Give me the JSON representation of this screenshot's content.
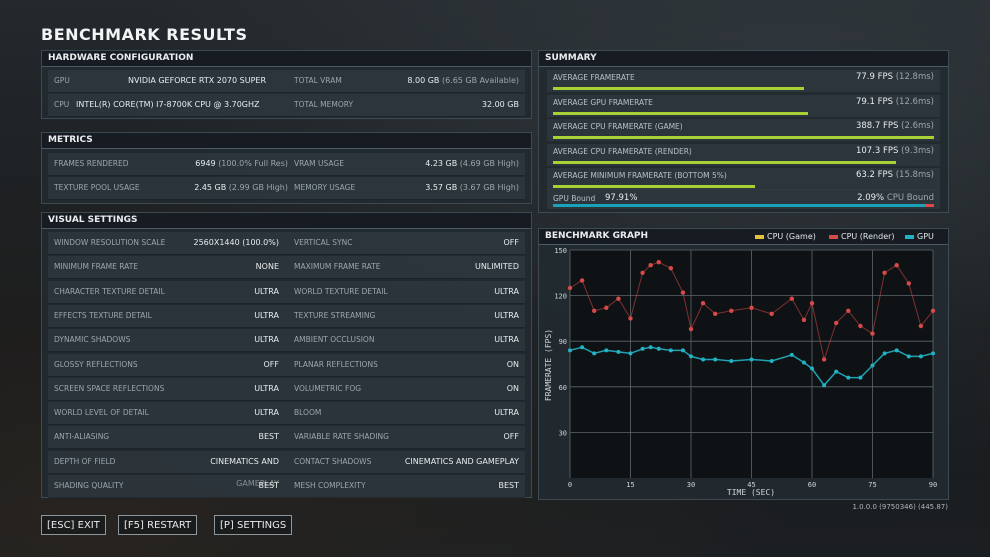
{
  "title": "BENCHMARK RESULTS",
  "hardware": {
    "heading": "HARDWARE CONFIGURATION",
    "gpu_label": "GPU",
    "gpu_value": "NVIDIA GEFORCE RTX 2070 SUPER",
    "vram_label": "TOTAL VRAM",
    "vram_value": "8.00 GB",
    "vram_sub": "(6.65 GB Available)",
    "cpu_label": "CPU",
    "cpu_value": "INTEL(R) CORE(TM) I7-8700K CPU @ 3.70GHZ",
    "mem_label": "TOTAL MEMORY",
    "mem_value": "32.00 GB"
  },
  "metrics": {
    "heading": "METRICS",
    "frames_label": "FRAMES RENDERED",
    "frames_value": "6949",
    "frames_sub": "(100.0% Full Res)",
    "vram_label": "VRAM USAGE",
    "vram_value": "4.23 GB",
    "vram_sub": "(4.69 GB High)",
    "pool_label": "TEXTURE POOL USAGE",
    "pool_value": "2.45 GB",
    "pool_sub": "(2.99 GB High)",
    "mem_label": "MEMORY USAGE",
    "mem_value": "3.57 GB",
    "mem_sub": "(3.67 GB High)"
  },
  "visual": {
    "heading": "VISUAL SETTINGS",
    "rows": [
      [
        "WINDOW RESOLUTION SCALE",
        "2560X1440 (100.0%)",
        "VERTICAL SYNC",
        "OFF"
      ],
      [
        "MINIMUM FRAME RATE",
        "NONE",
        "MAXIMUM FRAME RATE",
        "UNLIMITED"
      ],
      [
        "CHARACTER TEXTURE DETAIL",
        "ULTRA",
        "WORLD TEXTURE DETAIL",
        "ULTRA"
      ],
      [
        "EFFECTS TEXTURE DETAIL",
        "ULTRA",
        "TEXTURE STREAMING",
        "ULTRA"
      ],
      [
        "DYNAMIC SHADOWS",
        "ULTRA",
        "AMBIENT OCCLUSION",
        "ULTRA"
      ],
      [
        "GLOSSY REFLECTIONS",
        "OFF",
        "PLANAR REFLECTIONS",
        "ON"
      ],
      [
        "SCREEN SPACE REFLECTIONS",
        "ULTRA",
        "VOLUMETRIC FOG",
        "ON"
      ],
      [
        "WORLD LEVEL OF DETAIL",
        "ULTRA",
        "BLOOM",
        "ULTRA"
      ],
      [
        "ANTI-ALIASING",
        "BEST",
        "VARIABLE RATE SHADING",
        "OFF"
      ],
      [
        "DEPTH OF FIELD",
        "CINEMATICS AND GAMEPLAY",
        "CONTACT SHADOWS",
        "CINEMATICS AND GAMEPLAY"
      ],
      [
        "SHADING QUALITY",
        "BEST",
        "MESH COMPLEXITY",
        "BEST"
      ]
    ]
  },
  "summary": {
    "heading": "SUMMARY",
    "rows": [
      {
        "label": "AVERAGE FRAMERATE",
        "value": "77.9 FPS",
        "sub": "(12.8ms)",
        "fraction": 0.66
      },
      {
        "label": "AVERAGE GPU FRAMERATE",
        "value": "79.1 FPS",
        "sub": "(12.6ms)",
        "fraction": 0.67
      },
      {
        "label": "AVERAGE CPU FRAMERATE (GAME)",
        "value": "388.7 FPS",
        "sub": "(2.6ms)",
        "fraction": 1.0
      },
      {
        "label": "AVERAGE CPU FRAMERATE (RENDER)",
        "value": "107.3 FPS",
        "sub": "(9.3ms)",
        "fraction": 0.9
      },
      {
        "label": "AVERAGE MINIMUM FRAMERATE (BOTTOM 5%)",
        "value": "63.2 FPS",
        "sub": "(15.8ms)",
        "fraction": 0.53
      }
    ],
    "gpu_bound_label": "GPU Bound",
    "gpu_bound_value": "97.91%",
    "cpu_bound_value": "2.09%",
    "cpu_bound_label": "CPU Bound",
    "gpu_bound_fraction": 0.9791,
    "colors": {
      "bar": "#a7d134",
      "gpu": "#1aa3b8",
      "cpu": "#e04848"
    }
  },
  "graph": {
    "heading": "BENCHMARK GRAPH",
    "legend": [
      "CPU (Game)",
      "CPU (Render)",
      "GPU"
    ],
    "legend_colors": [
      "#e6c03a",
      "#d84a4a",
      "#22b2c4"
    ],
    "ylabel": "FRAMERATE (FPS)",
    "xlabel": "TIME (SEC)",
    "yticks": [
      "150",
      "120",
      "90",
      "60",
      "30"
    ],
    "xticks": [
      "0",
      "15",
      "30",
      "45",
      "60",
      "75",
      "90"
    ]
  },
  "chart_data": {
    "type": "scatter",
    "title": "BENCHMARK GRAPH",
    "xlabel": "TIME (SEC)",
    "ylabel": "FRAMERATE (FPS)",
    "xlim": [
      0,
      90
    ],
    "ylim": [
      0,
      150
    ],
    "grid": true,
    "legend_position": "top-right",
    "series": [
      {
        "name": "CPU (Render)",
        "color": "#d84a4a",
        "x": [
          0,
          3,
          6,
          9,
          12,
          15,
          18,
          20,
          22,
          25,
          28,
          30,
          33,
          36,
          40,
          45,
          50,
          55,
          58,
          60,
          63,
          66,
          69,
          72,
          75,
          78,
          81,
          84,
          87,
          90
        ],
        "y": [
          125,
          130,
          110,
          112,
          118,
          105,
          135,
          140,
          142,
          138,
          122,
          98,
          115,
          108,
          110,
          112,
          108,
          118,
          104,
          115,
          78,
          102,
          110,
          100,
          95,
          135,
          140,
          128,
          100,
          110
        ]
      },
      {
        "name": "GPU",
        "color": "#22b2c4",
        "x": [
          0,
          3,
          6,
          9,
          12,
          15,
          18,
          20,
          22,
          25,
          28,
          30,
          33,
          36,
          40,
          45,
          50,
          55,
          58,
          60,
          63,
          66,
          69,
          72,
          75,
          78,
          81,
          84,
          87,
          90
        ],
        "y": [
          84,
          86,
          82,
          84,
          83,
          82,
          85,
          86,
          85,
          84,
          84,
          80,
          78,
          78,
          77,
          78,
          77,
          81,
          76,
          72,
          61,
          70,
          66,
          66,
          74,
          82,
          84,
          80,
          80,
          82
        ]
      }
    ]
  },
  "buttons": {
    "exit": "[ESC] EXIT",
    "restart": "[F5] RESTART",
    "settings": "[P] SETTINGS"
  },
  "version": "1.0.0.0 (9750346) (445.87)"
}
